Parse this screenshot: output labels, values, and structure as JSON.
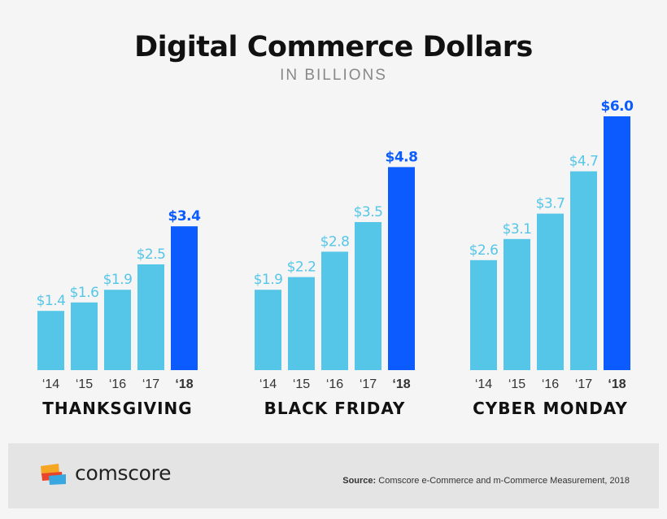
{
  "header": {
    "title": "Digital Commerce Dollars",
    "subtitle": "IN BILLIONS"
  },
  "colors": {
    "bar": "#55c6e8",
    "highlight": "#0b5bff",
    "axis_text": "#333333",
    "group_label": "#111111"
  },
  "chart_data": [
    {
      "type": "bar",
      "title": "THANKSGIVING",
      "categories": [
        "‘14",
        "‘15",
        "‘16",
        "‘17",
        "‘18"
      ],
      "values": [
        1.4,
        1.6,
        1.9,
        2.5,
        3.4
      ],
      "value_labels": [
        "$1.4",
        "$1.6",
        "$1.9",
        "$2.5",
        "$3.4"
      ],
      "highlight_category": "‘18",
      "ylim": [
        0,
        6.0
      ]
    },
    {
      "type": "bar",
      "title": "BLACK FRIDAY",
      "categories": [
        "‘14",
        "‘15",
        "‘16",
        "‘17",
        "‘18"
      ],
      "values": [
        1.9,
        2.2,
        2.8,
        3.5,
        4.8
      ],
      "value_labels": [
        "$1.9",
        "$2.2",
        "$2.8",
        "$3.5",
        "$4.8"
      ],
      "highlight_category": "‘18",
      "ylim": [
        0,
        6.0
      ]
    },
    {
      "type": "bar",
      "title": "CYBER MONDAY",
      "categories": [
        "‘14",
        "‘15",
        "‘16",
        "‘17",
        "‘18"
      ],
      "values": [
        2.6,
        3.1,
        3.7,
        4.7,
        6.0
      ],
      "value_labels": [
        "$2.6",
        "$3.1",
        "$3.7",
        "$4.7",
        "$6.0"
      ],
      "highlight_category": "‘18",
      "ylim": [
        0,
        6.0
      ]
    }
  ],
  "footer": {
    "logo_text": "comscore",
    "source_label": "Source:",
    "source_text": "Comscore e-Commerce and m-Commerce Measurement, 2018"
  }
}
